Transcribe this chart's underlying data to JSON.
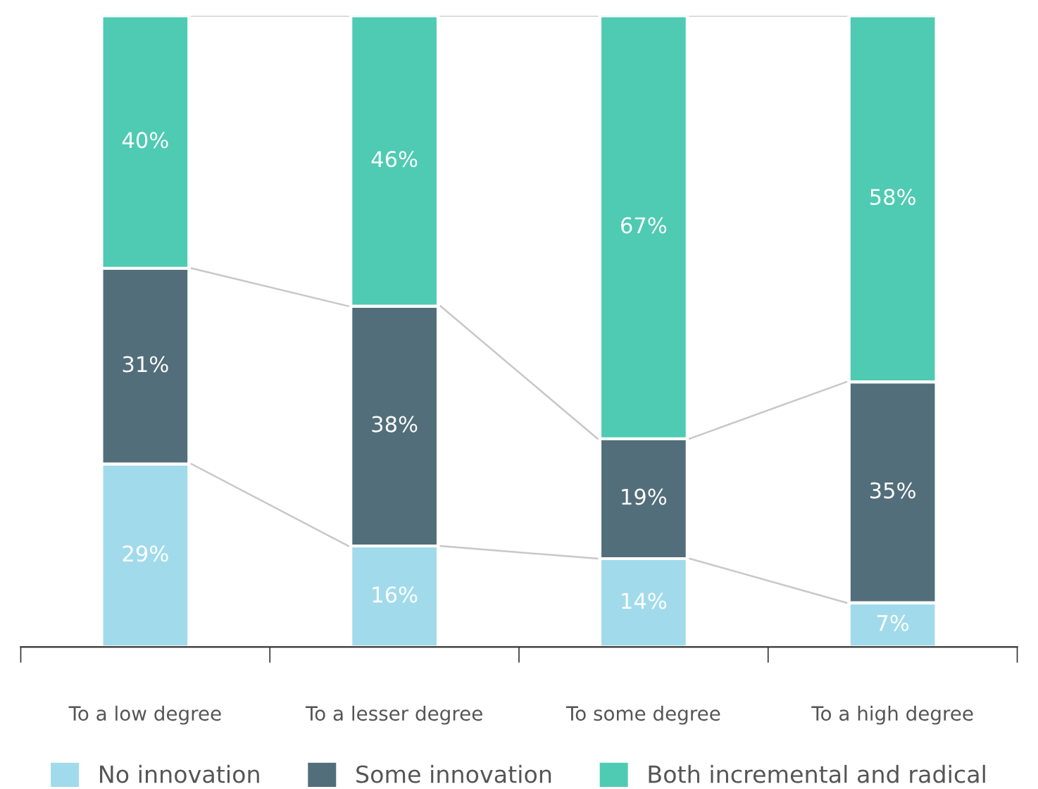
{
  "chart_data": {
    "type": "bar",
    "stacked": true,
    "categories": [
      "To a low degree",
      "To a lesser degree",
      "To some degree",
      "To a high degree"
    ],
    "series": [
      {
        "name": "No innovation",
        "color": "#a1dbeb",
        "values": [
          29,
          16,
          14,
          7
        ],
        "value_labels": [
          "29%",
          "16%",
          "14%",
          "7%"
        ]
      },
      {
        "name": "Some innovation",
        "color": "#526e7a",
        "values": [
          31,
          38,
          19,
          35
        ],
        "value_labels": [
          "31%",
          "38%",
          "19%",
          "35%"
        ]
      },
      {
        "name": "Both incremental and radical",
        "color": "#4ecbb2",
        "values": [
          40,
          46,
          67,
          58
        ],
        "value_labels": [
          "40%",
          "46%",
          "67%",
          "58%"
        ]
      }
    ],
    "legend": "bottom",
    "grid": false
  }
}
